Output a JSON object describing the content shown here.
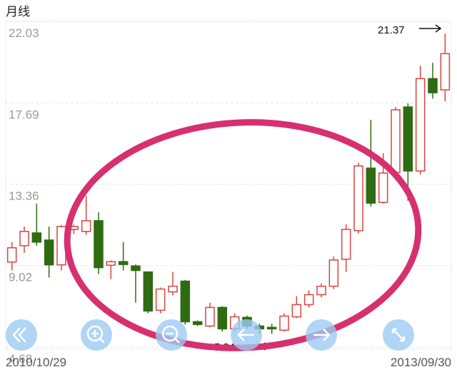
{
  "chart_data": {
    "type": "candlestick",
    "title": "月线",
    "categories": [
      "2010/10/29",
      null,
      null,
      null,
      null,
      null,
      null,
      null,
      null,
      null,
      null,
      null,
      null,
      null,
      null,
      null,
      null,
      null,
      null,
      null,
      null,
      null,
      null,
      null,
      null,
      null,
      null,
      null,
      null,
      null,
      null,
      null,
      null,
      null,
      null,
      "2013/09/30"
    ],
    "open": [
      9.21,
      10.08,
      10.76,
      10.38,
      9.06,
      10.95,
      10.84,
      11.41,
      9.04,
      9.23,
      9.0,
      8.68,
      6.64,
      7.62,
      8.19,
      6.03,
      5.8,
      6.79,
      5.65,
      6.26,
      5.8,
      5.73,
      5.58,
      6.29,
      6.94,
      7.47,
      7.92,
      9.36,
      10.88,
      14.21,
      12.39,
      13.98,
      17.47,
      14.06,
      18.98,
      18.38
    ],
    "high": [
      10.27,
      11.1,
      12.32,
      11.1,
      11.18,
      11.2,
      12.73,
      11.86,
      9.29,
      10.27,
      9.08,
      8.68,
      7.85,
      8.68,
      8.26,
      6.1,
      7.05,
      6.86,
      6.48,
      6.35,
      5.92,
      5.92,
      6.48,
      7.39,
      7.7,
      8.07,
      9.51,
      11.22,
      14.51,
      16.79,
      15.01,
      17.47,
      17.66,
      19.67,
      19.82,
      21.37
    ],
    "low": [
      8.76,
      9.7,
      10.08,
      8.38,
      8.76,
      10.7,
      10.65,
      8.57,
      8.3,
      8.76,
      7.05,
      6.48,
      6.48,
      7.43,
      5.88,
      5.8,
      5.73,
      5.5,
      5.5,
      5.65,
      5.34,
      5.38,
      5.5,
      6.22,
      6.79,
      7.32,
      7.77,
      8.68,
      10.73,
      12.17,
      12.32,
      13.76,
      12.47,
      13.87,
      17.92,
      17.77
    ],
    "close": [
      9.97,
      10.84,
      10.27,
      9.06,
      11.1,
      11.1,
      11.41,
      8.91,
      9.23,
      9.08,
      8.76,
      6.6,
      7.77,
      7.92,
      6.03,
      5.88,
      6.79,
      5.65,
      6.29,
      5.8,
      5.65,
      5.65,
      6.33,
      6.94,
      7.47,
      7.92,
      9.32,
      10.95,
      14.33,
      12.35,
      13.95,
      17.32,
      14.06,
      18.98,
      18.23,
      20.31
    ],
    "up_color": "#d9453f",
    "down_color": "#2f6b12",
    "ylim": [
      4.68,
      22.03
    ],
    "yticks": [
      22.03,
      17.69,
      13.36,
      9.02,
      4.68
    ],
    "grid": true,
    "max_label": 21.37,
    "min_label": 5.34
  }
}
